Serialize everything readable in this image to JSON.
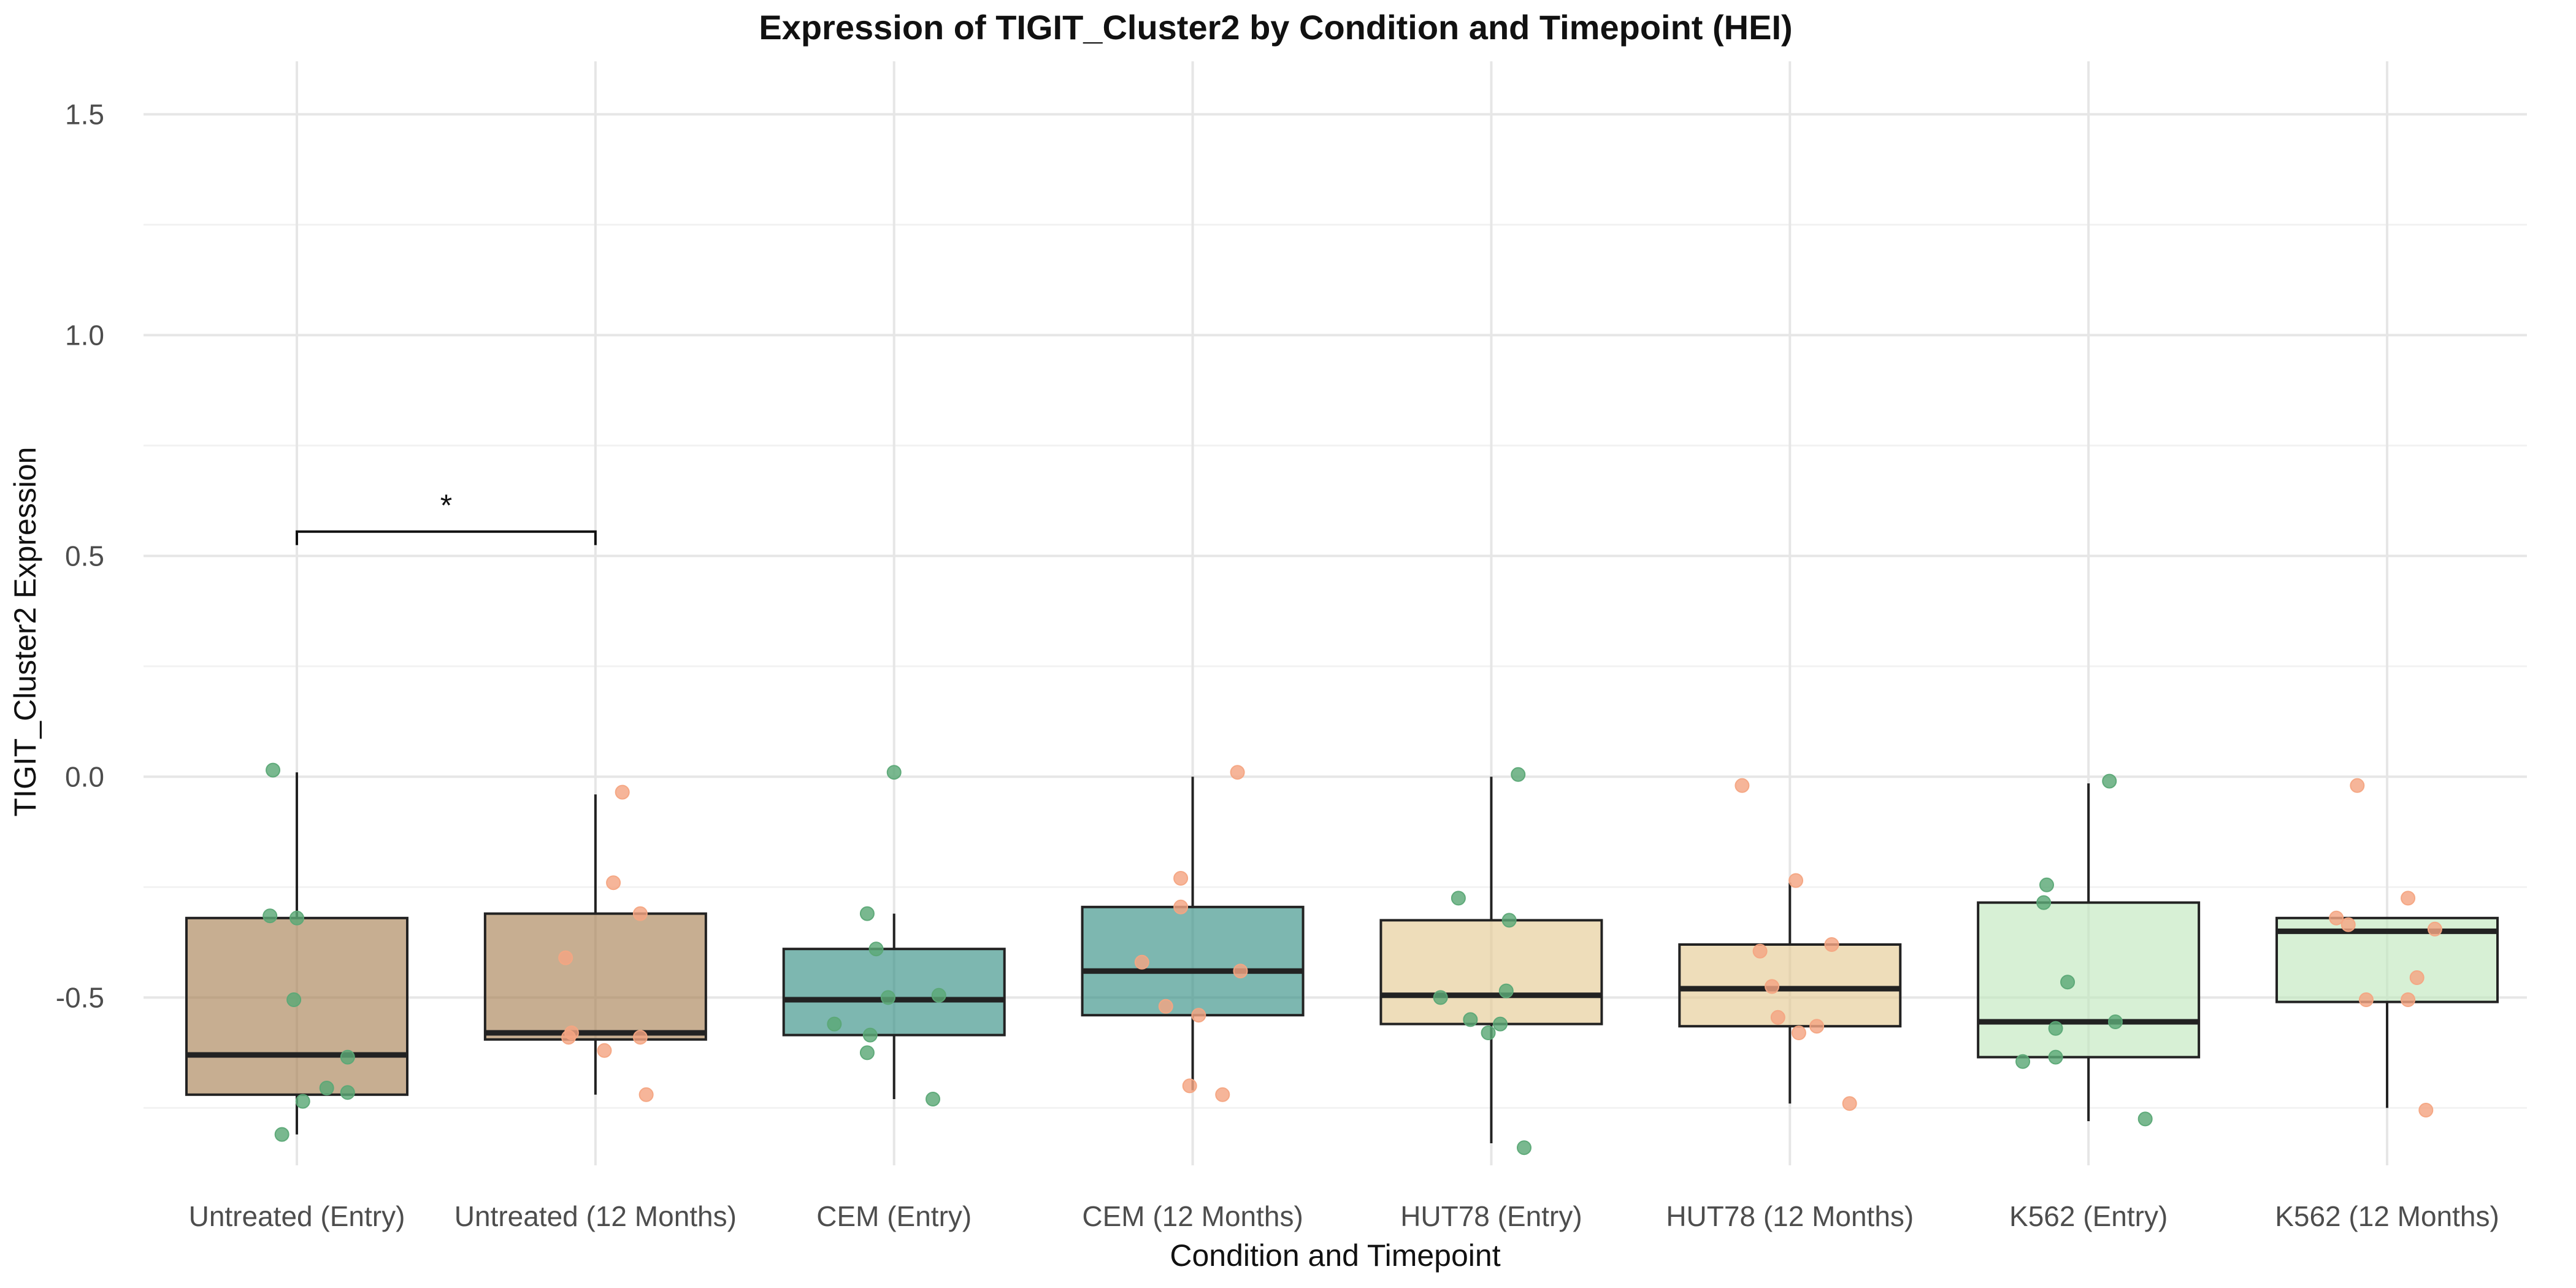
{
  "chart_data": {
    "type": "box",
    "title": "Expression of TIGIT_Cluster2 by Condition and Timepoint (HEI)",
    "xlabel": "Condition and Timepoint",
    "ylabel": "TIGIT_Cluster2 Expression",
    "ylim": [
      -0.88,
      1.62
    ],
    "yticks": [
      -0.5,
      0.0,
      0.5,
      1.0,
      1.5
    ],
    "ytick_labels": [
      "-0.5",
      "0.0",
      "0.5",
      "1.0",
      "1.5"
    ],
    "grid": true,
    "categories": [
      "Untreated (Entry)",
      "Untreated (12 Months)",
      "CEM (Entry)",
      "CEM (12 Months)",
      "HUT78 (Entry)",
      "HUT78 (12 Months)",
      "K562 (Entry)",
      "K562 (12 Months)"
    ],
    "boxes": [
      {
        "min": -0.81,
        "q1": -0.72,
        "median": -0.63,
        "q3": -0.32,
        "max": 0.01,
        "fill": "#a57c4d"
      },
      {
        "min": -0.72,
        "q1": -0.595,
        "median": -0.58,
        "q3": -0.31,
        "max": -0.04,
        "fill": "#a57c4d"
      },
      {
        "min": -0.73,
        "q1": -0.585,
        "median": -0.505,
        "q3": -0.39,
        "max": -0.31,
        "fill": "#2d8a7f"
      },
      {
        "min": -0.71,
        "q1": -0.54,
        "median": -0.44,
        "q3": -0.295,
        "max": 0.0,
        "fill": "#2d8a7f"
      },
      {
        "min": -0.83,
        "q1": -0.56,
        "median": -0.495,
        "q3": -0.325,
        "max": 0.0,
        "fill": "#e3c88f"
      },
      {
        "min": -0.74,
        "q1": -0.565,
        "median": -0.48,
        "q3": -0.38,
        "max": -0.24,
        "fill": "#e3c88f"
      },
      {
        "min": -0.78,
        "q1": -0.635,
        "median": -0.555,
        "q3": -0.285,
        "max": -0.015,
        "fill": "#bfe6bb"
      },
      {
        "min": -0.75,
        "q1": -0.51,
        "median": -0.35,
        "q3": -0.32,
        "max": -0.32,
        "fill": "#bfe6bb"
      }
    ],
    "points": [
      [
        {
          "x": -0.08,
          "y": 0.015
        },
        {
          "x": -0.09,
          "y": -0.315
        },
        {
          "x": 0.0,
          "y": -0.32
        },
        {
          "x": -0.01,
          "y": -0.505
        },
        {
          "x": 0.17,
          "y": -0.635
        },
        {
          "x": 0.1,
          "y": -0.705
        },
        {
          "x": 0.17,
          "y": -0.715
        },
        {
          "x": 0.02,
          "y": -0.735
        },
        {
          "x": -0.05,
          "y": -0.81
        }
      ],
      [
        {
          "x": 0.09,
          "y": -0.035
        },
        {
          "x": 0.06,
          "y": -0.24
        },
        {
          "x": 0.15,
          "y": -0.31
        },
        {
          "x": -0.1,
          "y": -0.41
        },
        {
          "x": -0.08,
          "y": -0.58
        },
        {
          "x": -0.09,
          "y": -0.59
        },
        {
          "x": 0.15,
          "y": -0.59
        },
        {
          "x": 0.03,
          "y": -0.62
        },
        {
          "x": 0.17,
          "y": -0.72
        }
      ],
      [
        {
          "x": 0.0,
          "y": 0.01
        },
        {
          "x": -0.09,
          "y": -0.31
        },
        {
          "x": -0.06,
          "y": -0.39
        },
        {
          "x": -0.02,
          "y": -0.5
        },
        {
          "x": 0.15,
          "y": -0.495
        },
        {
          "x": -0.2,
          "y": -0.56
        },
        {
          "x": -0.08,
          "y": -0.585
        },
        {
          "x": -0.09,
          "y": -0.625
        },
        {
          "x": 0.13,
          "y": -0.73
        }
      ],
      [
        {
          "x": 0.15,
          "y": 0.01
        },
        {
          "x": -0.04,
          "y": -0.23
        },
        {
          "x": -0.04,
          "y": -0.295
        },
        {
          "x": -0.17,
          "y": -0.42
        },
        {
          "x": 0.16,
          "y": -0.44
        },
        {
          "x": -0.09,
          "y": -0.52
        },
        {
          "x": 0.02,
          "y": -0.54
        },
        {
          "x": -0.01,
          "y": -0.7
        },
        {
          "x": 0.1,
          "y": -0.72
        }
      ],
      [
        {
          "x": 0.09,
          "y": 0.005
        },
        {
          "x": -0.11,
          "y": -0.275
        },
        {
          "x": 0.06,
          "y": -0.325
        },
        {
          "x": 0.05,
          "y": -0.485
        },
        {
          "x": -0.17,
          "y": -0.5
        },
        {
          "x": -0.07,
          "y": -0.55
        },
        {
          "x": 0.03,
          "y": -0.56
        },
        {
          "x": -0.01,
          "y": -0.58
        },
        {
          "x": 0.11,
          "y": -0.84
        }
      ],
      [
        {
          "x": -0.16,
          "y": -0.02
        },
        {
          "x": 0.02,
          "y": -0.235
        },
        {
          "x": 0.14,
          "y": -0.38
        },
        {
          "x": -0.1,
          "y": -0.395
        },
        {
          "x": -0.06,
          "y": -0.475
        },
        {
          "x": -0.04,
          "y": -0.545
        },
        {
          "x": 0.09,
          "y": -0.565
        },
        {
          "x": 0.03,
          "y": -0.58
        },
        {
          "x": 0.2,
          "y": -0.74
        }
      ],
      [
        {
          "x": 0.07,
          "y": -0.01
        },
        {
          "x": -0.14,
          "y": -0.245
        },
        {
          "x": -0.15,
          "y": -0.285
        },
        {
          "x": -0.07,
          "y": -0.465
        },
        {
          "x": 0.09,
          "y": -0.555
        },
        {
          "x": -0.11,
          "y": -0.57
        },
        {
          "x": -0.22,
          "y": -0.645
        },
        {
          "x": -0.11,
          "y": -0.635
        },
        {
          "x": 0.19,
          "y": -0.775
        }
      ],
      [
        {
          "x": -0.1,
          "y": -0.02
        },
        {
          "x": 0.07,
          "y": -0.275
        },
        {
          "x": -0.17,
          "y": -0.32
        },
        {
          "x": -0.13,
          "y": -0.335
        },
        {
          "x": 0.16,
          "y": -0.345
        },
        {
          "x": 0.1,
          "y": -0.455
        },
        {
          "x": -0.07,
          "y": -0.505
        },
        {
          "x": 0.07,
          "y": -0.505
        },
        {
          "x": 0.13,
          "y": -0.755
        }
      ]
    ],
    "point_colors": [
      "#5ba876",
      "#f4a582",
      "#5ba876",
      "#f4a582",
      "#5ba876",
      "#f4a582",
      "#5ba876",
      "#f4a582"
    ],
    "significance": [
      {
        "from": 0,
        "to": 1,
        "y": 0.555,
        "label": "*"
      }
    ]
  }
}
